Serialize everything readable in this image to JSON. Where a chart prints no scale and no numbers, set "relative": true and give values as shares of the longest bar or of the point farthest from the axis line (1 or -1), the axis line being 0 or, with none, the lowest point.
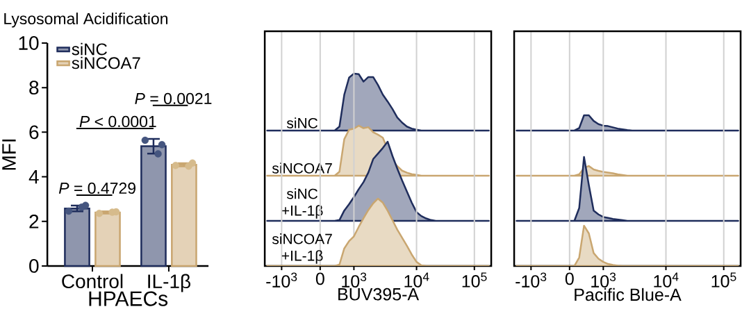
{
  "chart_data": [
    {
      "type": "bar",
      "title": "Lysosomal Acidification",
      "xlabel": "HPAECs",
      "ylabel": "MFI",
      "categories": [
        "Control",
        "IL-1β"
      ],
      "ylim": [
        0,
        10
      ],
      "yticks": [
        0,
        2,
        4,
        6,
        8,
        10
      ],
      "legend": "top left",
      "marker": "circle",
      "annotations": [
        "*P* = 0.4729",
        "*P* < 0.0001",
        "*P* = 0.0021"
      ],
      "series": [
        {
          "name": "siNC",
          "color": "#1f2d5c",
          "values": [
            2.58,
            5.37
          ],
          "errors": [
            0.13,
            0.33
          ]
        },
        {
          "name": "siNCOA7",
          "color": "#c9a670",
          "values": [
            2.4,
            4.54
          ],
          "errors": [
            0.05,
            0.07
          ]
        },
        {
          "type": "scatter",
          "color": "#45557f",
          "x": [
            "Control",
            "Control",
            "Control",
            "IL-1β",
            "IL-1β",
            "IL-1β"
          ],
          "values": [
            2.46,
            2.72,
            2.64,
            5.64,
            5.44,
            5.03
          ]
        },
        {
          "type": "scatter",
          "color": "#d6bb8c",
          "x": [
            "Control",
            "Control",
            "Control",
            "IL-1β",
            "IL-1β",
            "IL-1β"
          ],
          "values": [
            2.36,
            2.43,
            2.41,
            4.51,
            4.62,
            4.48
          ]
        }
      ]
    },
    {
      "type": "area",
      "relative": true,
      "ylabel": "siNC",
      "tick_labels": false,
      "categories": [
        null,
        null,
        null,
        null,
        null,
        null,
        null,
        null,
        null,
        null,
        null,
        null,
        null,
        null,
        null,
        null,
        null,
        null,
        null,
        null,
        null,
        null,
        null,
        null,
        null,
        null,
        null,
        null,
        null,
        null,
        null,
        null,
        null,
        null,
        null,
        null,
        null,
        null,
        null,
        null,
        null,
        null,
        null,
        null,
        null,
        null,
        null
      ],
      "series": [
        {
          "color": "#1f2d5c",
          "values": [
            0,
            0,
            0,
            0,
            0,
            0,
            0,
            0,
            0,
            0,
            0,
            0,
            0,
            0,
            0,
            0.07,
            0.63,
            0.93,
            1,
            0.99,
            0.86,
            0.94,
            0.94,
            0.8,
            0.63,
            0.51,
            0.38,
            0.23,
            0.14,
            0.07,
            0.035,
            0.014,
            0,
            0,
            0,
            0,
            0,
            0,
            0,
            0,
            0,
            0,
            0,
            0,
            0,
            0,
            0
          ]
        }
      ]
    },
    {
      "type": "area",
      "relative": true,
      "ylabel": "siNCOA7",
      "tick_labels": false,
      "categories": [
        null,
        null,
        null,
        null,
        null,
        null,
        null,
        null,
        null,
        null,
        null,
        null,
        null,
        null,
        null,
        null,
        null,
        null,
        null,
        null,
        null,
        null,
        null,
        null,
        null,
        null,
        null,
        null,
        null,
        null,
        null,
        null,
        null,
        null,
        null,
        null,
        null,
        null,
        null,
        null,
        null,
        null,
        null,
        null,
        null,
        null,
        null
      ],
      "series": [
        {
          "color": "#c9a670",
          "values": [
            0,
            0,
            0,
            0,
            0,
            0,
            0,
            0,
            0,
            0,
            0,
            0,
            0,
            0,
            0,
            0.08,
            0.73,
            0.92,
            0.94,
            1,
            0.95,
            0.97,
            0.87,
            0.82,
            0.76,
            0.53,
            0.31,
            0.19,
            0.1,
            0.06,
            0.03,
            0.016,
            0,
            0,
            0,
            0,
            0,
            0,
            0,
            0,
            0,
            0,
            0,
            0,
            0,
            0,
            0
          ]
        }
      ]
    },
    {
      "type": "area",
      "relative": true,
      "ylabel": "siNC +IL-1β",
      "tick_labels": false,
      "categories": [
        null,
        null,
        null,
        null,
        null,
        null,
        null,
        null,
        null,
        null,
        null,
        null,
        null,
        null,
        null,
        null,
        null,
        null,
        null,
        null,
        null,
        null,
        null,
        null,
        null,
        null,
        null,
        null,
        null,
        null,
        null,
        null,
        null,
        null,
        null,
        null,
        null,
        null,
        null,
        null,
        null,
        null,
        null,
        null,
        null,
        null,
        null
      ],
      "series": [
        {
          "color": "#1f2d5c",
          "values": [
            0,
            0,
            0,
            0,
            0,
            0,
            0,
            0,
            0,
            0,
            0,
            0,
            0,
            0,
            0,
            0.01,
            0.13,
            0.21,
            0.3,
            0.4,
            0.49,
            0.61,
            0.78,
            0.85,
            0.92,
            1,
            0.82,
            0.66,
            0.51,
            0.37,
            0.23,
            0.11,
            0.06,
            0.03,
            0.01,
            0,
            0,
            0,
            0,
            0,
            0,
            0,
            0,
            0,
            0,
            0,
            0
          ]
        }
      ]
    },
    {
      "type": "area",
      "relative": true,
      "ylabel": "siNCOA7 +IL-1β",
      "xlabel": "BUV395-A",
      "grid": "x",
      "categories": [
        null,
        null,
        null,
        "-10$^{3}$",
        null,
        null,
        null,
        null,
        null,
        null,
        null,
        "0",
        null,
        null,
        null,
        null,
        null,
        null,
        "10$^{3}$",
        null,
        null,
        null,
        null,
        null,
        null,
        null,
        null,
        null,
        null,
        null,
        null,
        "10$^{4}$",
        null,
        null,
        null,
        null,
        null,
        null,
        null,
        null,
        null,
        null,
        null,
        "10$^{5}$",
        null,
        null,
        null
      ],
      "series": [
        {
          "color": "#c9a670",
          "values": [
            0,
            0,
            0,
            0,
            0,
            0,
            0,
            0,
            0,
            0,
            0,
            0,
            0,
            0,
            0,
            0.02,
            0.26,
            0.37,
            0.44,
            0.58,
            0.71,
            0.83,
            0.93,
            1,
            0.94,
            0.82,
            0.68,
            0.54,
            0.42,
            0.3,
            0.17,
            0.06,
            0.01,
            0,
            0,
            0,
            0,
            0,
            0,
            0,
            0,
            0,
            0,
            0,
            0,
            0,
            0
          ]
        }
      ]
    },
    {
      "type": "area",
      "relative": true,
      "tick_labels": false,
      "categories": [
        null,
        null,
        null,
        null,
        null,
        null,
        null,
        null,
        null,
        null,
        null,
        null,
        null,
        null,
        null,
        null,
        null,
        null,
        null,
        null,
        null,
        null,
        null,
        null,
        null,
        null,
        null,
        null,
        null,
        null,
        null,
        null,
        null,
        null,
        null,
        null,
        null,
        null,
        null,
        null,
        null,
        null,
        null,
        null,
        null,
        null,
        null
      ],
      "series": [
        {
          "color": "#1f2d5c",
          "values": [
            0,
            0,
            0,
            0,
            0,
            0,
            0,
            0,
            0,
            0,
            0,
            0,
            0,
            0.16,
            1,
            1,
            0.63,
            0.42,
            0.32,
            0.29,
            0.21,
            0.13,
            0.08,
            0.03,
            0,
            0,
            0,
            0,
            0,
            0,
            0,
            0,
            0,
            0,
            0,
            0,
            0,
            0,
            0,
            0,
            0,
            0,
            0,
            0,
            0,
            0,
            0
          ]
        }
      ]
    },
    {
      "type": "area",
      "relative": true,
      "tick_labels": false,
      "categories": [
        null,
        null,
        null,
        null,
        null,
        null,
        null,
        null,
        null,
        null,
        null,
        null,
        null,
        null,
        null,
        null,
        null,
        null,
        null,
        null,
        null,
        null,
        null,
        null,
        null,
        null,
        null,
        null,
        null,
        null,
        null,
        null,
        null,
        null,
        null,
        null,
        null,
        null,
        null,
        null,
        null,
        null,
        null,
        null,
        null,
        null,
        null
      ],
      "series": [
        {
          "color": "#c9a670",
          "values": [
            0,
            0,
            0,
            0,
            0,
            0,
            0,
            0,
            0,
            0,
            0,
            0,
            0,
            0.14,
            0.79,
            1,
            0.64,
            0.5,
            0.39,
            0.32,
            0.25,
            0.14,
            0.07,
            0,
            0,
            0,
            0,
            0,
            0,
            0,
            0,
            0,
            0,
            0,
            0,
            0,
            0,
            0,
            0,
            0,
            0,
            0,
            0,
            0,
            0,
            0,
            0
          ]
        }
      ]
    },
    {
      "type": "area",
      "relative": true,
      "tick_labels": false,
      "categories": [
        null,
        null,
        null,
        null,
        null,
        null,
        null,
        null,
        null,
        null,
        null,
        null,
        null,
        null,
        null,
        null,
        null,
        null,
        null,
        null,
        null,
        null,
        null,
        null,
        null,
        null,
        null,
        null,
        null,
        null,
        null,
        null,
        null,
        null,
        null,
        null,
        null,
        null,
        null,
        null,
        null,
        null,
        null,
        null,
        null,
        null,
        null
      ],
      "series": [
        {
          "color": "#1f2d5c",
          "values": [
            0,
            0,
            0,
            0,
            0,
            0,
            0,
            0,
            0,
            0,
            0,
            0,
            0,
            0.2,
            1,
            0.56,
            0.16,
            0.1,
            0.06,
            0.046,
            0.03,
            0.02,
            0.01,
            0,
            0,
            0,
            0,
            0,
            0,
            0,
            0,
            0,
            0,
            0,
            0,
            0,
            0,
            0,
            0,
            0,
            0,
            0,
            0,
            0,
            0,
            0,
            0
          ]
        }
      ]
    },
    {
      "type": "area",
      "relative": true,
      "xlabel": "Pacific Blue-A",
      "grid": "x",
      "categories": [
        null,
        null,
        null,
        "-10$^{3}$",
        null,
        null,
        null,
        null,
        null,
        null,
        null,
        "0",
        null,
        null,
        null,
        null,
        null,
        null,
        "10$^{3}$",
        null,
        null,
        null,
        null,
        null,
        null,
        null,
        null,
        null,
        null,
        null,
        null,
        "10$^{4}$",
        null,
        null,
        null,
        null,
        null,
        null,
        null,
        null,
        null,
        null,
        null,
        "10$^{5}$",
        null,
        null,
        null
      ],
      "series": [
        {
          "color": "#c9a670",
          "values": [
            0,
            0,
            0,
            0,
            0,
            0,
            0,
            0,
            0,
            0,
            0,
            0,
            0,
            0.21,
            1,
            0.81,
            0.32,
            0.18,
            0.1,
            0.05,
            0.024,
            0.008,
            0,
            0,
            0,
            0,
            0,
            0,
            0,
            0,
            0,
            0,
            0,
            0,
            0,
            0,
            0,
            0,
            0,
            0,
            0,
            0,
            0,
            0,
            0,
            0,
            0
          ]
        }
      ]
    }
  ]
}
